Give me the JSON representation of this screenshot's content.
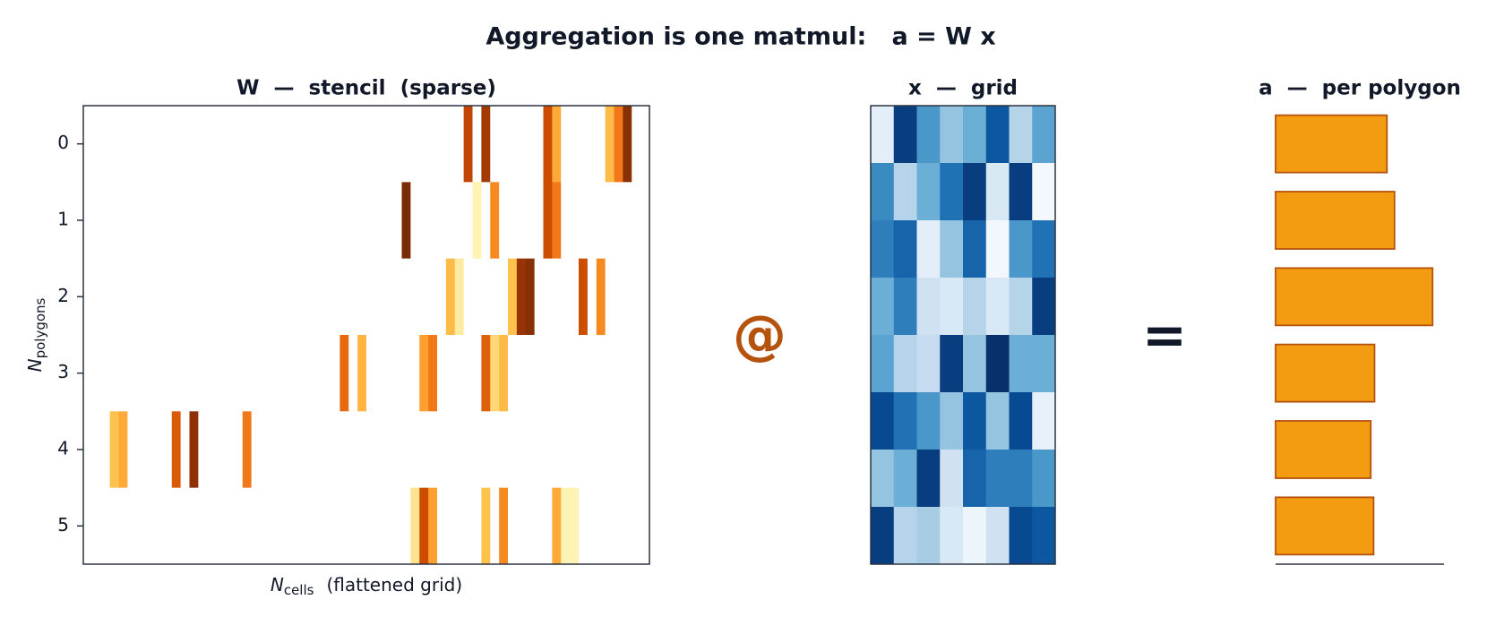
{
  "title": "Aggregation is one matmul:   a = W x",
  "operators": [
    "@",
    "="
  ],
  "chart_data": [
    {
      "type": "heatmap",
      "title": "W  —  stencil  (sparse)",
      "colormap": "YlOrBr",
      "clim": [
        0,
        1
      ],
      "mask_zero": true,
      "xlabel": {
        "symbol": "N",
        "sub": "cells",
        "text": "(flattened grid)"
      },
      "ylabel": {
        "symbol": "N",
        "sub": "polygons"
      },
      "xlim": [
        -0.5,
        63.5
      ],
      "ylim": [
        5.5,
        -0.5
      ],
      "yticks": [
        0,
        1,
        2,
        3,
        4,
        5
      ],
      "values": [
        [
          0,
          0,
          0,
          0,
          0,
          0,
          0,
          0,
          0,
          0,
          0,
          0,
          0,
          0,
          0,
          0,
          0,
          0,
          0,
          0,
          0,
          0,
          0,
          0,
          0,
          0,
          0,
          0,
          0,
          0,
          0,
          0,
          0,
          0,
          0,
          0,
          0,
          0,
          0,
          0,
          0,
          0,
          0,
          0.78,
          0,
          0.85,
          0,
          0,
          0,
          0,
          0,
          0,
          0.75,
          0.45,
          0,
          0,
          0,
          0,
          0,
          0.4,
          0.6,
          0.92,
          0,
          0
        ],
        [
          0,
          0,
          0,
          0,
          0,
          0,
          0,
          0,
          0,
          0,
          0,
          0,
          0,
          0,
          0,
          0,
          0,
          0,
          0,
          0,
          0,
          0,
          0,
          0,
          0,
          0,
          0,
          0,
          0,
          0,
          0,
          0,
          0,
          0,
          0,
          0,
          0.95,
          0,
          0,
          0,
          0,
          0,
          0,
          0,
          0.15,
          0,
          0.55,
          0,
          0,
          0,
          0,
          0,
          0.75,
          0.6,
          0,
          0,
          0,
          0,
          0,
          0,
          0,
          0,
          0,
          0
        ],
        [
          0,
          0,
          0,
          0,
          0,
          0,
          0,
          0,
          0,
          0,
          0,
          0,
          0,
          0,
          0,
          0,
          0,
          0,
          0,
          0,
          0,
          0,
          0,
          0,
          0,
          0,
          0,
          0,
          0,
          0,
          0,
          0,
          0,
          0,
          0,
          0,
          0,
          0,
          0,
          0,
          0,
          0.4,
          0.2,
          0,
          0,
          0,
          0,
          0,
          0.38,
          0.88,
          0.92,
          0,
          0,
          0,
          0,
          0,
          0.75,
          0,
          0.55,
          0,
          0,
          0,
          0,
          0
        ],
        [
          0,
          0,
          0,
          0,
          0,
          0,
          0,
          0,
          0,
          0,
          0,
          0,
          0,
          0,
          0,
          0,
          0,
          0,
          0,
          0,
          0,
          0,
          0,
          0,
          0,
          0,
          0,
          0,
          0,
          0.65,
          0,
          0.42,
          0,
          0,
          0,
          0,
          0,
          0,
          0.48,
          0.6,
          0,
          0,
          0,
          0,
          0,
          0.68,
          0.3,
          0.4,
          0,
          0,
          0,
          0,
          0,
          0,
          0,
          0,
          0,
          0,
          0,
          0,
          0,
          0,
          0,
          0
        ],
        [
          0,
          0,
          0,
          0.38,
          0.45,
          0,
          0,
          0,
          0,
          0,
          0.7,
          0,
          0.9,
          0,
          0,
          0,
          0,
          0,
          0.6,
          0,
          0,
          0,
          0,
          0,
          0,
          0,
          0,
          0,
          0,
          0,
          0,
          0,
          0,
          0,
          0,
          0,
          0,
          0,
          0,
          0,
          0,
          0,
          0,
          0,
          0,
          0,
          0,
          0,
          0,
          0,
          0,
          0,
          0,
          0,
          0,
          0,
          0,
          0,
          0,
          0,
          0,
          0,
          0,
          0
        ],
        [
          0,
          0,
          0,
          0,
          0,
          0,
          0,
          0,
          0,
          0,
          0,
          0,
          0,
          0,
          0,
          0,
          0,
          0,
          0,
          0,
          0,
          0,
          0,
          0,
          0,
          0,
          0,
          0,
          0,
          0,
          0,
          0,
          0,
          0,
          0,
          0,
          0,
          0.25,
          0.75,
          0.48,
          0,
          0,
          0,
          0,
          0,
          0.38,
          0,
          0.55,
          0,
          0,
          0,
          0,
          0,
          0.45,
          0.15,
          0.15,
          0,
          0,
          0,
          0,
          0,
          0,
          0,
          0
        ]
      ]
    },
    {
      "type": "heatmap",
      "title": "x  —  grid",
      "colormap": "Blues",
      "clim": [
        0,
        1
      ],
      "mask_zero": false,
      "xlim": [
        -0.5,
        7.5
      ],
      "ylim": [
        7.5,
        -0.5
      ],
      "values": [
        [
          0.1,
          0.95,
          0.6,
          0.4,
          0.5,
          0.85,
          0.3,
          0.55
        ],
        [
          0.65,
          0.3,
          0.5,
          0.75,
          0.95,
          0.15,
          0.95,
          0.02
        ],
        [
          0.7,
          0.8,
          0.1,
          0.4,
          0.8,
          0.03,
          0.6,
          0.75
        ],
        [
          0.5,
          0.7,
          0.2,
          0.15,
          0.3,
          0.15,
          0.3,
          0.95
        ],
        [
          0.55,
          0.3,
          0.25,
          0.95,
          0.4,
          1.0,
          0.5,
          0.5
        ],
        [
          0.9,
          0.75,
          0.6,
          0.4,
          0.85,
          0.4,
          0.9,
          0.08
        ],
        [
          0.4,
          0.5,
          0.95,
          0.2,
          0.8,
          0.7,
          0.7,
          0.6
        ],
        [
          0.95,
          0.3,
          0.35,
          0.15,
          0.05,
          0.2,
          0.9,
          0.85
        ]
      ]
    },
    {
      "type": "barh",
      "title": "a  —  per polygon",
      "color": "#f39c12",
      "edgecolor": "#b5520e",
      "xlim": [
        0,
        1.77
      ],
      "ylim": [
        5.5,
        -0.5
      ],
      "values": [
        1.17,
        1.25,
        1.65,
        1.04,
        1.0,
        1.03
      ]
    }
  ]
}
